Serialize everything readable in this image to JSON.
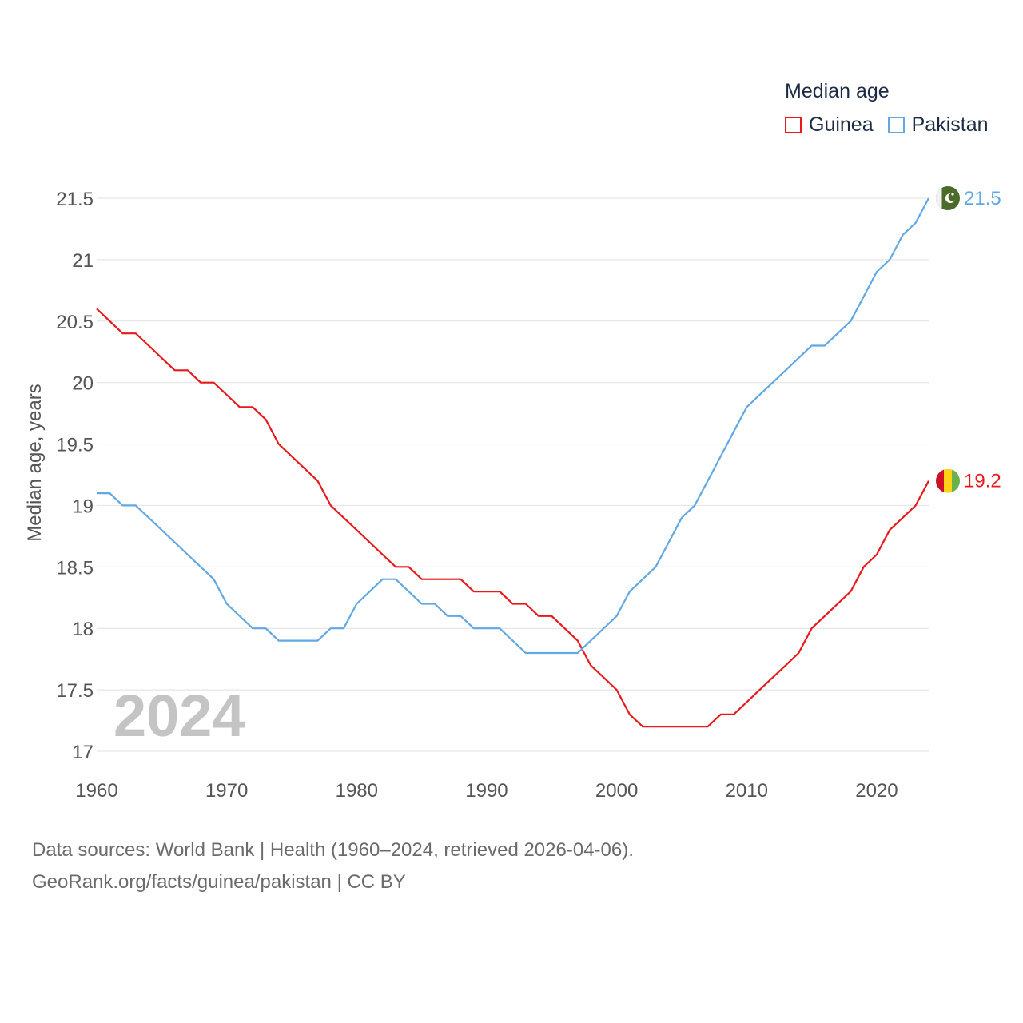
{
  "legend": {
    "title": "Median age",
    "items": [
      {
        "name": "Guinea",
        "color": "#e8191d"
      },
      {
        "name": "Pakistan",
        "color": "#61a8e4"
      }
    ]
  },
  "year_overlay": "2024",
  "footer": {
    "line1": "Data sources: World Bank | Health (1960–2024, retrieved 2026-04-06).",
    "line2": "GeoRank.org/facts/guinea/pakistan | CC BY"
  },
  "chart_data": {
    "type": "line",
    "title": "Median age",
    "ylabel": "Median age, years",
    "xlabel": "",
    "xlim": [
      1960,
      2024
    ],
    "ylim": [
      17,
      21.5
    ],
    "x_ticks": [
      1960,
      1970,
      1980,
      1990,
      2000,
      2010,
      2020
    ],
    "y_ticks": [
      17,
      17.5,
      18,
      18.5,
      19,
      19.5,
      20,
      20.5,
      21,
      21.5
    ],
    "grid": true,
    "legend_position": "top-right",
    "x": [
      1960,
      1961,
      1962,
      1963,
      1964,
      1965,
      1966,
      1967,
      1968,
      1969,
      1970,
      1971,
      1972,
      1973,
      1974,
      1975,
      1976,
      1977,
      1978,
      1979,
      1980,
      1981,
      1982,
      1983,
      1984,
      1985,
      1986,
      1987,
      1988,
      1989,
      1990,
      1991,
      1992,
      1993,
      1994,
      1995,
      1996,
      1997,
      1998,
      1999,
      2000,
      2001,
      2002,
      2003,
      2004,
      2005,
      2006,
      2007,
      2008,
      2009,
      2010,
      2011,
      2012,
      2013,
      2014,
      2015,
      2016,
      2017,
      2018,
      2019,
      2020,
      2021,
      2022,
      2023,
      2024
    ],
    "series": [
      {
        "name": "Guinea",
        "color": "#e8191d",
        "end_label": "19.2",
        "values": [
          20.6,
          20.5,
          20.4,
          20.4,
          20.3,
          20.2,
          20.1,
          20.1,
          20.0,
          20.0,
          19.9,
          19.8,
          19.8,
          19.7,
          19.5,
          19.4,
          19.3,
          19.2,
          19.0,
          18.9,
          18.8,
          18.7,
          18.6,
          18.5,
          18.5,
          18.4,
          18.4,
          18.4,
          18.4,
          18.3,
          18.3,
          18.3,
          18.2,
          18.2,
          18.1,
          18.1,
          18.0,
          17.9,
          17.7,
          17.6,
          17.5,
          17.3,
          17.2,
          17.2,
          17.2,
          17.2,
          17.2,
          17.2,
          17.3,
          17.3,
          17.4,
          17.5,
          17.6,
          17.7,
          17.8,
          18.0,
          18.1,
          18.2,
          18.3,
          18.5,
          18.6,
          18.8,
          18.9,
          19.0,
          19.2
        ]
      },
      {
        "name": "Pakistan",
        "color": "#61a8e4",
        "end_label": "21.5",
        "values": [
          19.1,
          19.1,
          19.0,
          19.0,
          18.9,
          18.8,
          18.7,
          18.6,
          18.5,
          18.4,
          18.2,
          18.1,
          18.0,
          18.0,
          17.9,
          17.9,
          17.9,
          17.9,
          18.0,
          18.0,
          18.2,
          18.3,
          18.4,
          18.4,
          18.3,
          18.2,
          18.2,
          18.1,
          18.1,
          18.0,
          18.0,
          18.0,
          17.9,
          17.8,
          17.8,
          17.8,
          17.8,
          17.8,
          17.9,
          18.0,
          18.1,
          18.3,
          18.4,
          18.5,
          18.7,
          18.9,
          19.0,
          19.2,
          19.4,
          19.6,
          19.8,
          19.9,
          20.0,
          20.1,
          20.2,
          20.3,
          20.3,
          20.4,
          20.5,
          20.7,
          20.9,
          21.0,
          21.2,
          21.3,
          21.5
        ]
      }
    ]
  }
}
